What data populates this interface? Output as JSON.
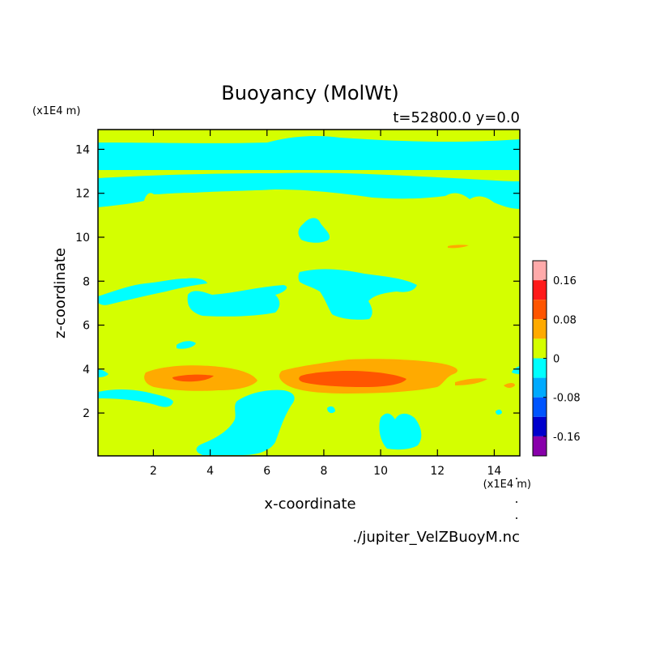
{
  "chart_data": {
    "type": "heatmap",
    "title": "Buoyancy (MolWt)",
    "subtitle": "t=52800.0 y=0.0",
    "xlabel": "x-coordinate",
    "ylabel": "z-coordinate",
    "x_unit": "(x1E4 m)",
    "y_unit": "(x1E4 m)",
    "xlim": [
      0.05,
      14.9
    ],
    "ylim": [
      0.05,
      14.9
    ],
    "x_ticks": [
      2,
      4,
      6,
      8,
      10,
      12,
      14
    ],
    "y_ticks": [
      2,
      4,
      6,
      8,
      10,
      12,
      14
    ],
    "x_tick_labels": [
      "2",
      "4",
      "6",
      "8",
      "10",
      "12",
      "14"
    ],
    "y_tick_labels": [
      "2",
      "4",
      "6",
      "8",
      "10",
      "12",
      "14"
    ],
    "background_level": "0 to 0.04",
    "colorbar": {
      "levels": [
        {
          "range": [
            0.16,
            0.2
          ],
          "color": "#ffaaaa"
        },
        {
          "range": [
            0.12,
            0.16
          ],
          "color": "#ff1a1a"
        },
        {
          "range": [
            0.08,
            0.12
          ],
          "color": "#ff5500"
        },
        {
          "range": [
            0.04,
            0.08
          ],
          "color": "#ffaa00"
        },
        {
          "range": [
            0,
            0.04
          ],
          "color": "#d4ff00"
        },
        {
          "range": [
            -0.04,
            0
          ],
          "color": "#00ffff"
        },
        {
          "range": [
            -0.08,
            -0.04
          ],
          "color": "#00aaff"
        },
        {
          "range": [
            -0.12,
            -0.08
          ],
          "color": "#0055ff"
        },
        {
          "range": [
            -0.16,
            -0.12
          ],
          "color": "#0000cc"
        },
        {
          "range": [
            -0.2,
            -0.16
          ],
          "color": "#8800aa"
        }
      ],
      "tick_values": [
        0.16,
        0.08,
        0,
        -0.08,
        -0.16
      ],
      "tick_labels": [
        "0.16",
        "0.08",
        "0",
        "-0.08",
        "-0.16"
      ]
    },
    "regions": [
      {
        "name": "upper band",
        "level": "-0.04 to 0",
        "x": [
          0.05,
          14.9
        ],
        "z": [
          13.1,
          14.7
        ]
      },
      {
        "name": "band near z=12",
        "level": "-0.04 to 0",
        "x": [
          0.05,
          14.9
        ],
        "z": [
          11.3,
          12.6
        ]
      },
      {
        "name": "patch near x=7.8 z=10.5",
        "level": "-0.04 to 0",
        "x": [
          7.1,
          8.3
        ],
        "z": [
          10.0,
          11.0
        ]
      },
      {
        "name": "patch left z=7.5",
        "level": "-0.04 to 0",
        "x": [
          0.05,
          3.6
        ],
        "z": [
          6.9,
          8.2
        ]
      },
      {
        "name": "patch near x=5.5 z=7",
        "level": "-0.04 to 0",
        "x": [
          3.2,
          7.2
        ],
        "z": [
          6.2,
          7.9
        ]
      },
      {
        "name": "patch near x=10 z=8",
        "level": "-0.04 to 0",
        "x": [
          7.0,
          11.0
        ],
        "z": [
          6.3,
          8.5
        ]
      },
      {
        "name": "warm band left",
        "level": "0.04 to 0.08",
        "x": [
          1.6,
          5.6
        ],
        "z": [
          3.1,
          4.2
        ]
      },
      {
        "name": "warm core left",
        "level": "0.08 to 0.12",
        "x": [
          2.6,
          4.1
        ],
        "z": [
          3.4,
          3.7
        ]
      },
      {
        "name": "warm band center",
        "level": "0.04 to 0.08",
        "x": [
          6.3,
          12.3
        ],
        "z": [
          3.0,
          4.4
        ]
      },
      {
        "name": "warm core center",
        "level": "0.08 to 0.12",
        "x": [
          7.0,
          10.7
        ],
        "z": [
          3.2,
          3.8
        ]
      },
      {
        "name": "cold strip z=2.8",
        "level": "-0.04 to 0",
        "x": [
          0.05,
          2.7
        ],
        "z": [
          2.2,
          3.0
        ]
      },
      {
        "name": "cold plume x=6",
        "level": "-0.04 to 0",
        "x": [
          3.8,
          7.0
        ],
        "z": [
          0.05,
          3.0
        ]
      },
      {
        "name": "cold patch x=10",
        "level": "-0.04 to 0",
        "x": [
          9.8,
          11.4
        ],
        "z": [
          0.2,
          2.0
        ]
      }
    ]
  },
  "footer": {
    "filename": "./jupiter_VelZBuoyM.nc"
  }
}
